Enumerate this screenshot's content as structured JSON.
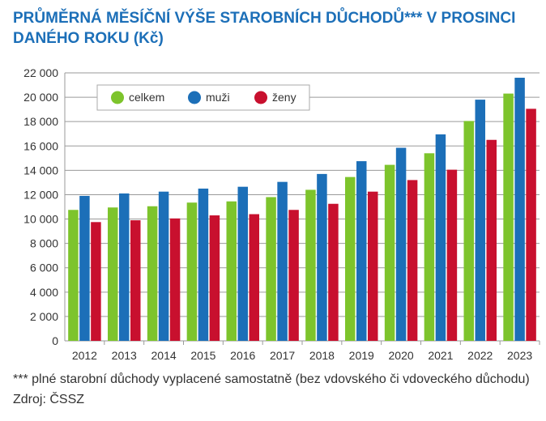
{
  "title": "PRŮMĚRNÁ MĚSÍČNÍ VÝŠE STAROBNÍCH DŮCHODŮ*** V PROSINCI DANÉHO ROKU (Kč)",
  "footnote": "*** plné starobní důchody vyplacené samostatně (bez vdovského či vdoveckého důchodu) Zdroj: ČSSZ",
  "colors": {
    "celkem": "#7dc42c",
    "muzi": "#1c6fb8",
    "zeny": "#c8102e",
    "grid": "#9a9a9a"
  },
  "chart_data": {
    "type": "bar",
    "categories": [
      "2012",
      "2013",
      "2014",
      "2015",
      "2016",
      "2017",
      "2018",
      "2019",
      "2020",
      "2021",
      "2022",
      "2023"
    ],
    "series": [
      {
        "name": "celkem",
        "values": [
          10750,
          10950,
          11050,
          11350,
          11450,
          11800,
          12400,
          13450,
          14450,
          15400,
          18050,
          20300
        ]
      },
      {
        "name": "muži",
        "values": [
          11900,
          12100,
          12250,
          12500,
          12650,
          13050,
          13700,
          14750,
          15850,
          16950,
          19800,
          21600
        ]
      },
      {
        "name": "ženy",
        "values": [
          9750,
          9900,
          10050,
          10300,
          10400,
          10750,
          11250,
          12250,
          13200,
          14050,
          16500,
          19050
        ]
      }
    ],
    "yticks": [
      "0",
      "2 000",
      "4 000",
      "6 000",
      "8 000",
      "10 000",
      "12 000",
      "14 000",
      "16 000",
      "18 000",
      "20 000",
      "22 000"
    ],
    "ylim": [
      0,
      22000
    ],
    "grid": true,
    "legend": "top-left"
  }
}
